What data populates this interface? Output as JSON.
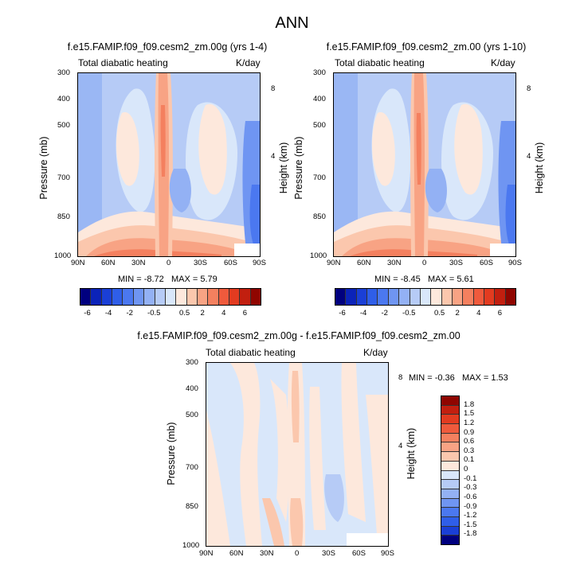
{
  "figure_title": "ANN",
  "chart_data": [
    {
      "type": "heatmap",
      "title": "f.e15.FAMIP.f09_f09.cesm2_zm.00g (yrs 1-4)",
      "left_label": "Total diabatic heating",
      "right_label": "K/day",
      "xlabel": "",
      "ylabel": "Pressure (mb)",
      "ylabel_right": "Height (km)",
      "x_ticks": [
        "90N",
        "60N",
        "30N",
        "0",
        "30S",
        "60S",
        "90S"
      ],
      "y_ticks": [
        "300",
        "400",
        "500",
        "700",
        "850",
        "1000"
      ],
      "y_ticks_right": [
        "8",
        "4"
      ],
      "min_label": "MIN =",
      "min": "-8.72",
      "max_label": "MAX =",
      "max": "5.79",
      "units": "K/day"
    },
    {
      "type": "heatmap",
      "title": "f.e15.FAMIP.f09_f09.cesm2_zm.00 (yrs 1-10)",
      "left_label": "Total diabatic heating",
      "right_label": "K/day",
      "xlabel": "",
      "ylabel": "Pressure (mb)",
      "ylabel_right": "Height (km)",
      "x_ticks": [
        "90N",
        "60N",
        "30N",
        "0",
        "30S",
        "60S",
        "90S"
      ],
      "y_ticks": [
        "300",
        "400",
        "500",
        "700",
        "850",
        "1000"
      ],
      "y_ticks_right": [
        "8",
        "4"
      ],
      "min_label": "MIN =",
      "min": "-8.45",
      "max_label": "MAX =",
      "max": "5.61",
      "units": "K/day"
    },
    {
      "type": "heatmap",
      "title": "f.e15.FAMIP.f09_f09.cesm2_zm.00g - f.e15.FAMIP.f09_f09.cesm2_zm.00",
      "left_label": "Total diabatic heating",
      "right_label": "K/day",
      "xlabel": "",
      "ylabel": "Pressure (mb)",
      "ylabel_right": "Height (km)",
      "x_ticks": [
        "90N",
        "60N",
        "30N",
        "0",
        "30S",
        "60S",
        "90S"
      ],
      "y_ticks": [
        "300",
        "400",
        "500",
        "700",
        "850",
        "1000"
      ],
      "y_ticks_right": [
        "8",
        "4"
      ],
      "min_label": "MIN =",
      "min": "-0.36",
      "max_label": "MAX =",
      "max": "1.53",
      "units": "K/day"
    }
  ],
  "colorbar_top": {
    "labels": [
      "-6",
      "-4",
      "-2",
      "-0.5",
      "0.5",
      "2",
      "4",
      "6"
    ],
    "colors": [
      "#00007f",
      "#0b23b9",
      "#1a3fd6",
      "#2f5ee8",
      "#4b78f0",
      "#6f95f2",
      "#93b1f4",
      "#b6cbf6",
      "#d9e7fa",
      "#fde8dc",
      "#fbc7ad",
      "#f8a384",
      "#f4805f",
      "#ef5a3c",
      "#e23b20",
      "#c21f0f",
      "#8f0500"
    ]
  },
  "colorbar_diff": {
    "labels": [
      "1.8",
      "1.5",
      "1.2",
      "0.9",
      "0.6",
      "0.3",
      "0.1",
      "0",
      "-0.1",
      "-0.3",
      "-0.6",
      "-0.9",
      "-1.2",
      "-1.5",
      "-1.8"
    ],
    "colors": [
      "#8f0500",
      "#c21f0f",
      "#e23b20",
      "#ef5a3c",
      "#f4805f",
      "#f8a384",
      "#fbc7ad",
      "#fde8dc",
      "#d9e7fa",
      "#b6cbf6",
      "#93b1f4",
      "#6f95f2",
      "#4b78f0",
      "#2f5ee8",
      "#1a3fd6",
      "#00007f"
    ]
  }
}
